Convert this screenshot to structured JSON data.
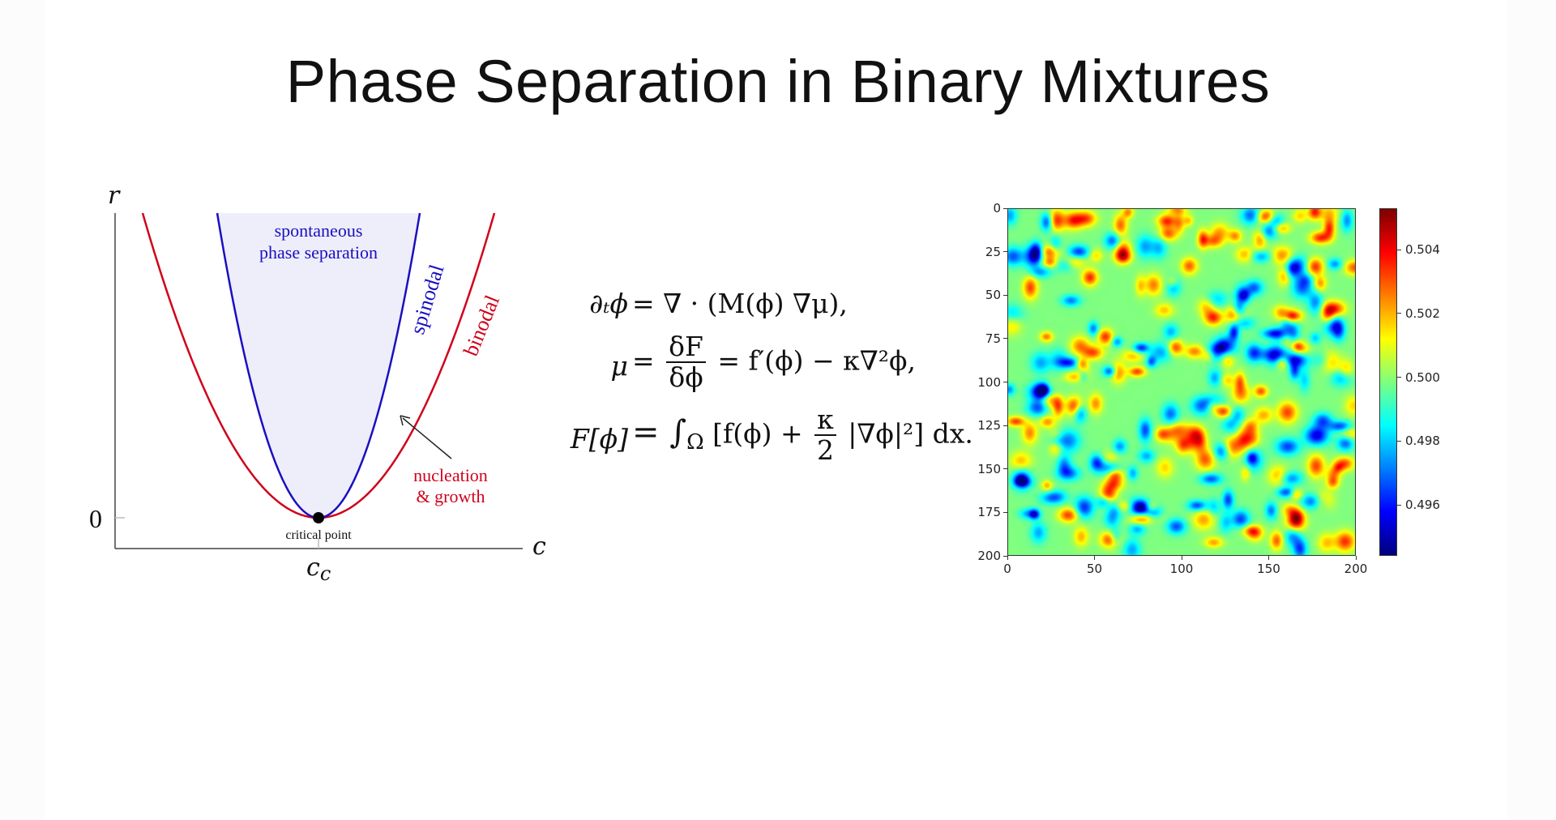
{
  "title": "Phase Separation in Binary Mixtures",
  "diagram": {
    "y_axis_label": "r",
    "x_axis_label": "c",
    "y_tick_label": "0",
    "x_tick_label_base": "c",
    "x_tick_label_sub": "c",
    "critical_point_label": "critical point",
    "region_label_line1": "spontaneous",
    "region_label_line2": "phase separation",
    "spinodal_label": "spinodal",
    "binodal_label": "binodal",
    "nucleation_line1": "nucleation",
    "nucleation_line2": "& growth",
    "colors": {
      "spinodal": "#1a0fc0",
      "binodal": "#d0021b",
      "fill": "#eeeefb",
      "axis": "#444444"
    }
  },
  "equations": {
    "eq1_lhs": "∂ₜϕ",
    "eq1_rhs": "= ∇ · (M(ϕ) ∇μ),",
    "eq2_lhs": "μ",
    "eq2_eq": "=",
    "eq2_num": "δF",
    "eq2_den": "δϕ",
    "eq2_rest": "= f′(ϕ) − κ∇²ϕ,",
    "eq3_lhs": "F[ϕ]",
    "eq3_a": "= ∫",
    "eq3_sub": "Ω",
    "eq3_b": "[f(ϕ) +",
    "eq3_num": "κ",
    "eq3_den": "2",
    "eq3_c": "|∇ϕ|²]  dx."
  },
  "chart_data": {
    "type": "heatmap",
    "colormap": "jet",
    "x_ticks": [
      "0",
      "50",
      "100",
      "150",
      "200"
    ],
    "y_ticks": [
      "0",
      "25",
      "50",
      "75",
      "100",
      "125",
      "150",
      "175",
      "200"
    ],
    "xlim": [
      0,
      200
    ],
    "ylim": [
      200,
      0
    ],
    "colorbar_ticks": [
      "0.504",
      "0.502",
      "0.500",
      "0.498",
      "0.496"
    ],
    "value_range": [
      0.4944,
      0.5053
    ],
    "grid": false
  }
}
